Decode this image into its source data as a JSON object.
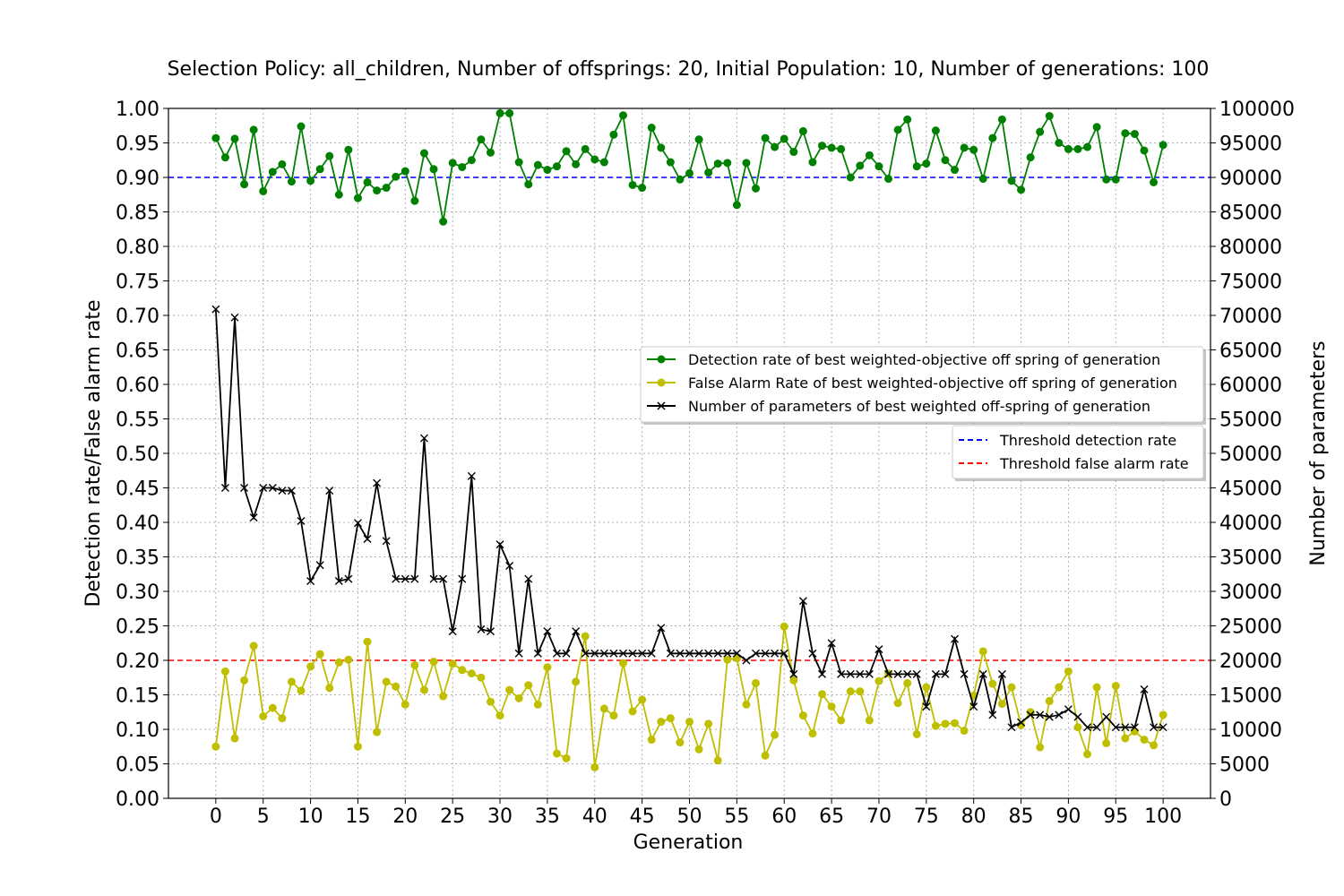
{
  "chart_data": {
    "type": "line",
    "title": "Selection Policy: all_children, Number of offsprings: 20, Initial Population: 10, Number of generations: 100",
    "xlabel": "Generation",
    "ylabel_left": "Detection rate/False alarm rate",
    "ylabel_right": "Number of parameters",
    "xlim": [
      -5,
      105
    ],
    "ylim_left": [
      0,
      1
    ],
    "ylim_right": [
      0,
      100000
    ],
    "x_ticks": [
      0,
      5,
      10,
      15,
      20,
      25,
      30,
      35,
      40,
      45,
      50,
      55,
      60,
      65,
      70,
      75,
      80,
      85,
      90,
      95,
      100
    ],
    "y_ticks_left": [
      "0.00",
      "0.05",
      "0.10",
      "0.15",
      "0.20",
      "0.25",
      "0.30",
      "0.35",
      "0.40",
      "0.45",
      "0.50",
      "0.55",
      "0.60",
      "0.65",
      "0.70",
      "0.75",
      "0.80",
      "0.85",
      "0.90",
      "0.95",
      "1.00"
    ],
    "y_ticks_right": [
      "0",
      "5000",
      "10000",
      "15000",
      "20000",
      "25000",
      "30000",
      "35000",
      "40000",
      "45000",
      "50000",
      "55000",
      "60000",
      "65000",
      "70000",
      "75000",
      "80000",
      "85000",
      "90000",
      "95000",
      "100000"
    ],
    "grid": true,
    "x": [
      0,
      1,
      2,
      3,
      4,
      5,
      6,
      7,
      8,
      9,
      10,
      11,
      12,
      13,
      14,
      15,
      16,
      17,
      18,
      19,
      20,
      21,
      22,
      23,
      24,
      25,
      26,
      27,
      28,
      29,
      30,
      31,
      32,
      33,
      34,
      35,
      36,
      37,
      38,
      39,
      40,
      41,
      42,
      43,
      44,
      45,
      46,
      47,
      48,
      49,
      50,
      51,
      52,
      53,
      54,
      55,
      56,
      57,
      58,
      59,
      60,
      61,
      62,
      63,
      64,
      65,
      66,
      67,
      68,
      69,
      70,
      71,
      72,
      73,
      74,
      75,
      76,
      77,
      78,
      79,
      80,
      81,
      82,
      83,
      84,
      85,
      86,
      87,
      88,
      89,
      90,
      91,
      92,
      93,
      94,
      95,
      96,
      97,
      98,
      99,
      100
    ],
    "series": [
      {
        "name": "Detection rate of best weighted-objective off spring of generation",
        "axis": "left",
        "color": "#008000",
        "marker": "circle",
        "values": [
          0.957,
          0.929,
          0.956,
          0.89,
          0.969,
          0.88,
          0.908,
          0.919,
          0.894,
          0.974,
          0.895,
          0.912,
          0.931,
          0.875,
          0.94,
          0.87,
          0.893,
          0.881,
          0.885,
          0.901,
          0.909,
          0.866,
          0.935,
          0.912,
          0.836,
          0.921,
          0.915,
          0.925,
          0.955,
          0.936,
          0.993,
          0.993,
          0.922,
          0.89,
          0.918,
          0.911,
          0.916,
          0.938,
          0.919,
          0.941,
          0.926,
          0.922,
          0.962,
          0.99,
          0.889,
          0.885,
          0.972,
          0.943,
          0.922,
          0.897,
          0.906,
          0.955,
          0.907,
          0.92,
          0.921,
          0.86,
          0.921,
          0.884,
          0.957,
          0.944,
          0.956,
          0.937,
          0.967,
          0.922,
          0.946,
          0.943,
          0.941,
          0.9,
          0.917,
          0.932,
          0.916,
          0.898,
          0.969,
          0.984,
          0.916,
          0.92,
          0.968,
          0.925,
          0.911,
          0.943,
          0.94,
          0.898,
          0.957,
          0.984,
          0.895,
          0.882,
          0.929,
          0.966,
          0.989,
          0.95,
          0.941,
          0.941,
          0.944,
          0.973,
          0.897,
          0.897,
          0.964,
          0.963,
          0.939,
          0.893,
          0.947
        ]
      },
      {
        "name": "False Alarm Rate of best weighted-objective off spring of generation",
        "axis": "left",
        "color": "#bfbf00",
        "marker": "circle",
        "values": [
          0.075,
          0.184,
          0.087,
          0.171,
          0.221,
          0.119,
          0.131,
          0.116,
          0.169,
          0.156,
          0.191,
          0.209,
          0.16,
          0.197,
          0.201,
          0.075,
          0.227,
          0.096,
          0.169,
          0.162,
          0.136,
          0.193,
          0.157,
          0.198,
          0.148,
          0.195,
          0.186,
          0.181,
          0.175,
          0.14,
          0.12,
          0.157,
          0.145,
          0.164,
          0.136,
          0.19,
          0.065,
          0.058,
          0.169,
          0.235,
          0.045,
          0.13,
          0.12,
          0.196,
          0.126,
          0.143,
          0.085,
          0.111,
          0.116,
          0.081,
          0.111,
          0.071,
          0.108,
          0.055,
          0.201,
          0.203,
          0.136,
          0.167,
          0.062,
          0.092,
          0.249,
          0.171,
          0.12,
          0.094,
          0.151,
          0.133,
          0.113,
          0.155,
          0.155,
          0.113,
          0.17,
          0.181,
          0.138,
          0.167,
          0.093,
          0.161,
          0.105,
          0.108,
          0.109,
          0.098,
          0.149,
          0.213,
          0.166,
          0.137,
          0.161,
          0.106,
          0.125,
          0.074,
          0.141,
          0.161,
          0.184,
          0.103,
          0.064,
          0.161,
          0.08,
          0.163,
          0.087,
          0.097,
          0.085,
          0.077,
          0.121
        ]
      },
      {
        "name": "Number of parameters of best weighted off-spring of generation",
        "axis": "right",
        "color": "#000000",
        "marker": "x",
        "values": [
          70900,
          45000,
          69700,
          45000,
          40700,
          45000,
          45000,
          44600,
          44600,
          40200,
          31500,
          33800,
          44600,
          31500,
          31800,
          39900,
          37600,
          45700,
          37300,
          31800,
          31800,
          31800,
          52200,
          31800,
          31800,
          24200,
          31800,
          46700,
          24500,
          24200,
          36800,
          33700,
          21000,
          31800,
          21000,
          24200,
          21000,
          21000,
          24200,
          21000,
          21000,
          21000,
          21000,
          21000,
          21000,
          21000,
          21000,
          24700,
          21000,
          21000,
          21000,
          21000,
          21000,
          21000,
          21000,
          21000,
          20000,
          21000,
          21000,
          21000,
          21000,
          18000,
          28600,
          21000,
          18000,
          22500,
          18000,
          18000,
          18000,
          18000,
          21600,
          18000,
          18000,
          18000,
          18000,
          13300,
          18000,
          18000,
          23100,
          18000,
          13300,
          18000,
          12100,
          18000,
          10300,
          11000,
          12100,
          12100,
          11800,
          12100,
          12900,
          11800,
          10300,
          10300,
          11800,
          10300,
          10300,
          10300,
          15800,
          10300,
          10300
        ]
      }
    ],
    "thresholds": [
      {
        "name": "Threshold detection rate",
        "value": 0.9,
        "color": "#0000ff"
      },
      {
        "name": "Threshold false alarm rate",
        "value": 0.2,
        "color": "#ff0000"
      }
    ],
    "legend_placement": "center-right"
  }
}
